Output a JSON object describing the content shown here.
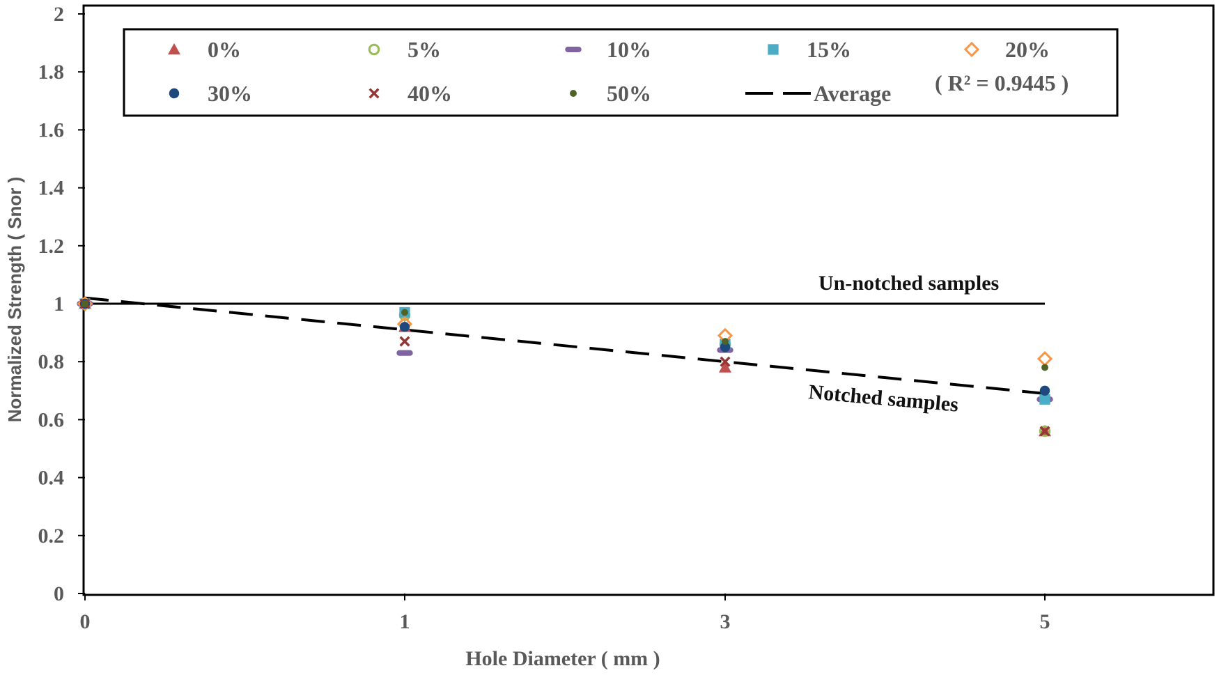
{
  "chart_data": {
    "type": "scatter",
    "title": "",
    "xlabel": "Hole Diameter ( mm )",
    "ylabel": "Normalized Strength ( Snor )",
    "x_categories": [
      "0",
      "1",
      "3",
      "5"
    ],
    "ylim": [
      0,
      2
    ],
    "yticks": [
      "0",
      "0.2",
      "0.4",
      "0.6",
      "0.8",
      "1",
      "1.2",
      "1.4",
      "1.6",
      "1.8",
      "2"
    ],
    "grid": false,
    "legend_position": "top",
    "series": [
      {
        "name": "0%",
        "marker": "triangle",
        "color": "#c0504d",
        "values": [
          1.0,
          0.92,
          0.78,
          0.56
        ]
      },
      {
        "name": "5%",
        "marker": "circle-open",
        "color": "#9bbb59",
        "values": [
          1.0,
          0.96,
          0.86,
          0.56
        ]
      },
      {
        "name": "10%",
        "marker": "dash-pill",
        "color": "#8064a2",
        "values": [
          1.0,
          0.83,
          0.84,
          0.67
        ]
      },
      {
        "name": "15%",
        "marker": "square",
        "color": "#4bacc6",
        "values": [
          1.0,
          0.97,
          0.86,
          0.67
        ]
      },
      {
        "name": "20%",
        "marker": "diamond-open",
        "color": "#f79646",
        "values": [
          1.0,
          0.93,
          0.89,
          0.81
        ]
      },
      {
        "name": "30%",
        "marker": "circle",
        "color": "#1f497d",
        "values": [
          1.0,
          0.92,
          0.85,
          0.7
        ]
      },
      {
        "name": "40%",
        "marker": "x",
        "color": "#943634",
        "values": [
          1.0,
          0.87,
          0.8,
          0.56
        ]
      },
      {
        "name": "50%",
        "marker": "dot",
        "color": "#4f6228",
        "values": [
          1.0,
          0.97,
          0.87,
          0.78
        ]
      }
    ],
    "average_line": {
      "name": "Average",
      "style": "dashed",
      "color": "#000000",
      "x_start": "0",
      "x_end": "5",
      "y_start": 1.02,
      "y_end": 0.69,
      "r_squared_label": "( R² = 0.9445 )"
    },
    "reference_line": {
      "value": 1.0,
      "x_start": "0",
      "x_end": "5",
      "color": "#000000"
    },
    "annotations": [
      {
        "text": "Un-notched samples",
        "near": "reference line at x=4..5"
      },
      {
        "text": "Notched samples",
        "near": "average line at x=4..5"
      }
    ]
  }
}
